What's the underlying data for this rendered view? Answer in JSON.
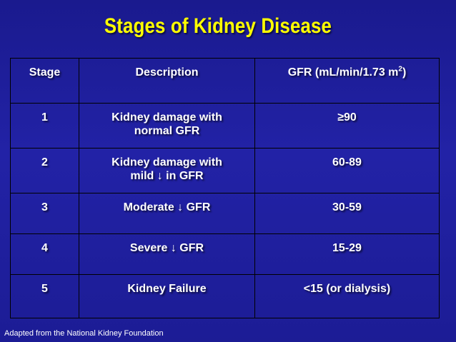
{
  "title": "Stages of Kidney Disease",
  "table": {
    "headers": {
      "stage": "Stage",
      "description": "Description",
      "gfr_text": "GFR (mL/min/1.73 m",
      "gfr_exponent": "2",
      "gfr_close": ")"
    },
    "rows": [
      {
        "stage": "1",
        "desc_line1": "Kidney damage with",
        "desc_line2": "normal GFR",
        "gfr": "≥90"
      },
      {
        "stage": "2",
        "desc_line1": "Kidney damage with",
        "desc_line2": "mild ↓ in GFR",
        "gfr": "60-89"
      },
      {
        "stage": "3",
        "desc_line1": "Moderate ↓ GFR",
        "gfr": "30-59"
      },
      {
        "stage": "4",
        "desc_line1": "Severe ↓ GFR",
        "gfr": "15-29"
      },
      {
        "stage": "5",
        "desc_line1": "Kidney Failure",
        "gfr": "<15 (or dialysis)"
      }
    ]
  },
  "footer": "Adapted from the National Kidney Foundation",
  "colors": {
    "background": "#1f1f9e",
    "title": "#ffff00",
    "text": "#ffffff",
    "border": "#000000"
  }
}
